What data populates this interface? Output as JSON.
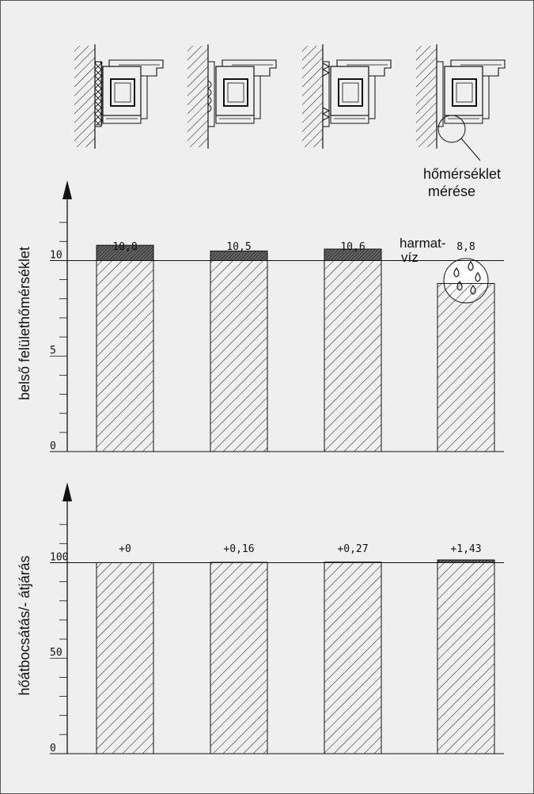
{
  "annotations": {
    "measure_label_1": "hőmérséklet",
    "measure_label_2": "mérése",
    "dew_label_1": "harmat-",
    "dew_label_2": "víz"
  },
  "chart_data": [
    {
      "type": "bar",
      "ylabel": "belső felülethőmérséklet",
      "ylim": [
        0,
        13
      ],
      "yticks": [
        0,
        5,
        10
      ],
      "reference_line": 10,
      "categories": [
        "",
        "",
        "",
        ""
      ],
      "value_labels": [
        "10,8",
        "10,5",
        "10,6",
        "8,8"
      ],
      "values": [
        10.8,
        10.5,
        10.6,
        8.8
      ]
    },
    {
      "type": "bar",
      "ylabel": "hőátbocsátás/- átjárás",
      "ylim": [
        0,
        130
      ],
      "yticks": [
        0,
        50,
        100
      ],
      "reference_line": 100,
      "categories": [
        "",
        "",
        "",
        ""
      ],
      "value_labels": [
        "+0",
        "+0,16",
        "+0,27",
        "+1,43"
      ],
      "values": [
        100,
        100.16,
        100.27,
        101.43
      ]
    }
  ]
}
